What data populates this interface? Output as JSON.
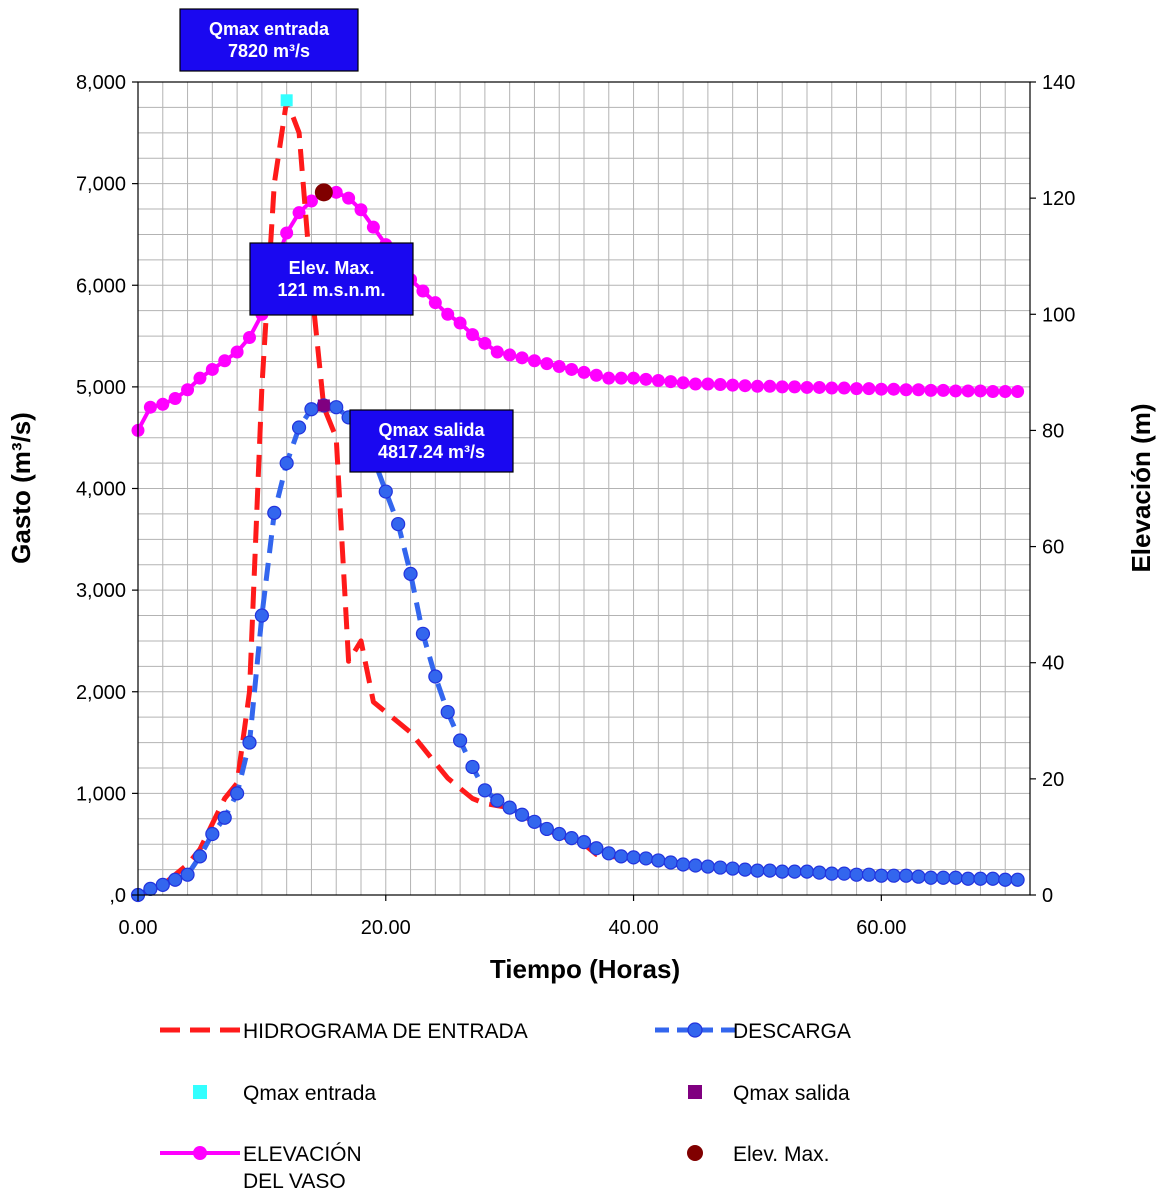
{
  "chart_data": {
    "type": "line",
    "xlabel": "Tiempo (Horas)",
    "ylabel": "Gasto (m³/s)",
    "y2label": "Elevación (m)",
    "xlim": [
      0,
      72
    ],
    "xticks": [
      0,
      20,
      40,
      60
    ],
    "xtick_labels": [
      "0.00",
      "20.00",
      "40.00",
      "60.00"
    ],
    "ylim": [
      0,
      8000
    ],
    "yticks": [
      0,
      1000,
      2000,
      3000,
      4000,
      5000,
      6000,
      7000,
      8000
    ],
    "ytick_labels": [
      ",0",
      "1,000",
      "2,000",
      "3,000",
      "4,000",
      "5,000",
      "6,000",
      "7,000",
      "8,000"
    ],
    "y2lim": [
      0,
      140
    ],
    "y2ticks": [
      0,
      20,
      40,
      60,
      80,
      100,
      120,
      140
    ],
    "y2tick_labels": [
      "0",
      "20",
      "40",
      "60",
      "80",
      "100",
      "120",
      "140"
    ],
    "grid": true,
    "colors": {
      "inflow": "#ff1a1a",
      "outflow": "#3366ee",
      "outflow_marker": "#2233dd",
      "elevation": "#ff00ff",
      "qmax_in": "#33ffff",
      "qmax_out": "#800080",
      "elev_max": "#800000",
      "annotation_bg": "#1a08f0"
    },
    "series": [
      {
        "name": "HIDROGRAMA DE ENTRADA",
        "axis": "left",
        "style": "dashed",
        "x": [
          0,
          1,
          2,
          3,
          4,
          5,
          6,
          7,
          8,
          9,
          10,
          11,
          12,
          13,
          14,
          15,
          16,
          17,
          18,
          19,
          20,
          21,
          22,
          23,
          24,
          25,
          26,
          27,
          28,
          29,
          30,
          31,
          32,
          33,
          34,
          35,
          36,
          37,
          38,
          39,
          40,
          41,
          42,
          43,
          44,
          45,
          46,
          47,
          48,
          49,
          50,
          51,
          52,
          53,
          54,
          55,
          56,
          57,
          58,
          59,
          60,
          61,
          62,
          63,
          64,
          65,
          66,
          67,
          68,
          69,
          70,
          71
        ],
        "y": [
          0,
          50,
          100,
          200,
          300,
          450,
          700,
          950,
          1100,
          2000,
          5000,
          7000,
          7820,
          7500,
          6000,
          4800,
          4500,
          2300,
          2500,
          1900,
          1800,
          1700,
          1600,
          1450,
          1300,
          1150,
          1050,
          950,
          900,
          880,
          860,
          800,
          700,
          640,
          590,
          540,
          500,
          400,
          380,
          370,
          360,
          350,
          330,
          310,
          290,
          280,
          270,
          260,
          250,
          240,
          240,
          230,
          230,
          230,
          220,
          210,
          210,
          200,
          200,
          190,
          190,
          190,
          180,
          170,
          170,
          170,
          160,
          160,
          160,
          150,
          150,
          150
        ]
      },
      {
        "name": "DESCARGA",
        "axis": "left",
        "style": "dashed-markers",
        "x": [
          0,
          1,
          2,
          3,
          4,
          5,
          6,
          7,
          8,
          9,
          10,
          11,
          12,
          13,
          14,
          15,
          16,
          17,
          18,
          19,
          20,
          21,
          22,
          23,
          24,
          25,
          26,
          27,
          28,
          29,
          30,
          31,
          32,
          33,
          34,
          35,
          36,
          37,
          38,
          39,
          40,
          41,
          42,
          43,
          44,
          45,
          46,
          47,
          48,
          49,
          50,
          51,
          52,
          53,
          54,
          55,
          56,
          57,
          58,
          59,
          60,
          61,
          62,
          63,
          64,
          65,
          66,
          67,
          68,
          69,
          70,
          71
        ],
        "y": [
          0,
          60,
          100,
          150,
          200,
          380,
          600,
          760,
          1000,
          1500,
          2750,
          3760,
          4250,
          4600,
          4780,
          4817.24,
          4800,
          4700,
          4550,
          4300,
          3970,
          3650,
          3160,
          2570,
          2150,
          1800,
          1520,
          1260,
          1030,
          930,
          860,
          790,
          720,
          650,
          600,
          560,
          520,
          460,
          410,
          380,
          370,
          360,
          340,
          320,
          300,
          290,
          280,
          270,
          260,
          250,
          240,
          240,
          230,
          230,
          230,
          220,
          210,
          210,
          200,
          200,
          190,
          190,
          190,
          180,
          170,
          170,
          170,
          160,
          160,
          160,
          150,
          150
        ]
      },
      {
        "name": "ELEVACIÓN DEL VASO",
        "axis": "right",
        "style": "solid-markers",
        "x": [
          0,
          1,
          2,
          3,
          4,
          5,
          6,
          7,
          8,
          9,
          10,
          11,
          12,
          13,
          14,
          15,
          16,
          17,
          18,
          19,
          20,
          21,
          22,
          23,
          24,
          25,
          26,
          27,
          28,
          29,
          30,
          31,
          32,
          33,
          34,
          35,
          36,
          37,
          38,
          39,
          40,
          41,
          42,
          43,
          44,
          45,
          46,
          47,
          48,
          49,
          50,
          51,
          52,
          53,
          54,
          55,
          56,
          57,
          58,
          59,
          60,
          61,
          62,
          63,
          64,
          65,
          66,
          67,
          68,
          69,
          70,
          71
        ],
        "y": [
          80,
          84,
          84.5,
          85.5,
          87,
          89,
          90.5,
          92,
          93.5,
          96,
          100,
          108,
          114,
          117.5,
          119.5,
          121,
          121,
          120,
          118,
          115,
          112,
          109,
          106,
          104,
          102,
          100,
          98.5,
          96.5,
          95,
          93.5,
          93,
          92.5,
          92,
          91.5,
          91,
          90.5,
          90,
          89.5,
          89,
          89,
          89,
          88.8,
          88.6,
          88.4,
          88.2,
          88,
          88,
          87.9,
          87.8,
          87.7,
          87.6,
          87.6,
          87.5,
          87.5,
          87.4,
          87.4,
          87.3,
          87.3,
          87.2,
          87.2,
          87.1,
          87.1,
          87,
          87,
          86.9,
          86.9,
          86.8,
          86.8,
          86.8,
          86.7,
          86.7,
          86.7
        ]
      },
      {
        "name": "Qmax entrada",
        "axis": "left",
        "style": "marker-square",
        "x": [
          12
        ],
        "y": [
          7820
        ]
      },
      {
        "name": "Qmax salida",
        "axis": "left",
        "style": "marker-square",
        "x": [
          15
        ],
        "y": [
          4817.24
        ]
      },
      {
        "name": "Elev. Max.",
        "axis": "right",
        "style": "marker-circle",
        "x": [
          15
        ],
        "y": [
          121
        ]
      }
    ],
    "annotations": [
      {
        "lines": [
          "Qmax entrada",
          "7820 m³/s"
        ]
      },
      {
        "lines": [
          "Elev. Max.",
          "121 m.s.n.m."
        ]
      },
      {
        "lines": [
          "Qmax salida",
          "4817.24 m³/s"
        ]
      }
    ],
    "legend": {
      "placement": "bottom",
      "entries": [
        {
          "series": "HIDROGRAMA DE ENTRADA",
          "lines": [
            "HIDROGRAMA DE ENTRADA"
          ]
        },
        {
          "series": "DESCARGA",
          "lines": [
            "DESCARGA"
          ]
        },
        {
          "series": "Qmax entrada",
          "lines": [
            "Qmax entrada"
          ]
        },
        {
          "series": "Qmax salida",
          "lines": [
            "Qmax salida"
          ]
        },
        {
          "series": "ELEVACIÓN DEL VASO",
          "lines": [
            "ELEVACIÓN",
            "DEL VASO"
          ]
        },
        {
          "series": "Elev. Max.",
          "lines": [
            "Elev. Max."
          ]
        }
      ]
    }
  }
}
